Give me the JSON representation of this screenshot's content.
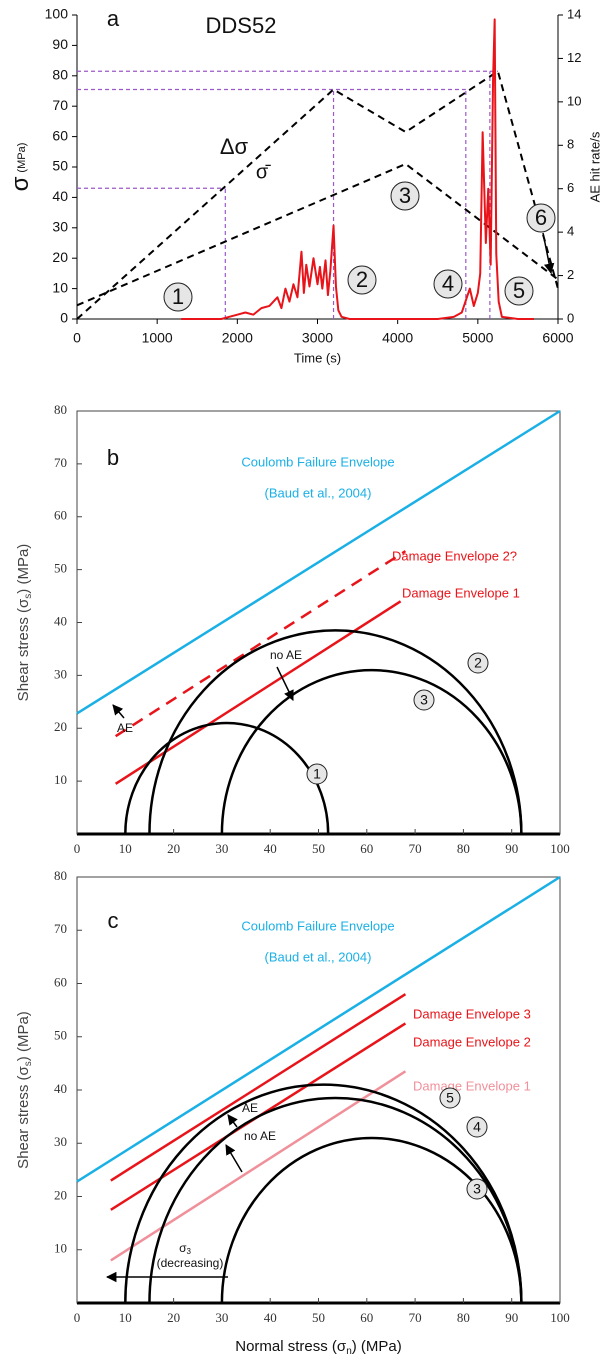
{
  "chart_data": [
    {
      "type": "line",
      "panel_label": "a",
      "title": "DDS52",
      "x_label": "Time (s)",
      "y_label": [
        "σ",
        "(MPa)"
      ],
      "y2_label": "AE hit rate/s",
      "xlim": [
        0,
        6000
      ],
      "xticks": [
        0,
        1000,
        2000,
        3000,
        4000,
        5000,
        6000
      ],
      "ylim": [
        0,
        100
      ],
      "yticks": [
        0,
        10,
        20,
        30,
        40,
        50,
        60,
        70,
        80,
        90,
        100
      ],
      "y2lim": [
        0,
        14
      ],
      "y2ticks": [
        0,
        2,
        4,
        6,
        8,
        10,
        12,
        14
      ],
      "series": [
        {
          "name": "Δσ",
          "color": "#000000",
          "dashed": true,
          "x": [
            0,
            3200,
            4100,
            5250,
            6000
          ],
          "values": [
            0,
            75.5,
            61.5,
            81.5,
            10
          ]
        },
        {
          "name": "σ̄",
          "color": "#000000",
          "dashed": true,
          "x": [
            0,
            4100,
            6000
          ],
          "values": [
            4.5,
            51,
            13
          ]
        },
        {
          "color": "#e8141a",
          "axis": "y2",
          "x": [
            1300,
            1800,
            1900,
            2000,
            2100,
            2200,
            2300,
            2400,
            2500,
            2550,
            2600,
            2650,
            2700,
            2750,
            2800,
            2830,
            2860,
            2900,
            2950,
            3000,
            3030,
            3060,
            3100,
            3130,
            3160,
            3200,
            3230,
            3260,
            3300,
            3400,
            4500,
            4700,
            4800,
            4900,
            4950,
            5000,
            5030,
            5060,
            5100,
            5130,
            5160,
            5190,
            5210,
            5230,
            5260,
            5300,
            5500,
            5700
          ],
          "values": [
            0,
            0,
            0.1,
            0.2,
            0.3,
            0.2,
            0.5,
            0.6,
            1.0,
            0.5,
            1.4,
            0.8,
            1.6,
            1.0,
            3.1,
            1.2,
            2.5,
            1.5,
            2.8,
            1.6,
            2.4,
            1.4,
            2.7,
            1.1,
            2.2,
            4.3,
            1.5,
            0.4,
            0.1,
            0,
            0,
            0.1,
            0.3,
            1.4,
            0.6,
            1.2,
            2.1,
            8.6,
            3.5,
            6.0,
            2.5,
            11,
            13.8,
            3,
            0.8,
            0.1,
            0,
            0
          ]
        }
      ],
      "reference_lines": {
        "color": "#9b59c9",
        "lines": [
          {
            "x": [
              0,
              5250
            ],
            "values": [
              81.5,
              81.5
            ]
          },
          {
            "x": [
              0,
              4850
            ],
            "values": [
              75.5,
              75.5
            ]
          },
          {
            "x": [
              0,
              1850
            ],
            "values": [
              43,
              43
            ]
          },
          {
            "x": [
              1850,
              1850
            ],
            "values": [
              0,
              43
            ]
          },
          {
            "x": [
              3200,
              3200
            ],
            "values": [
              0,
              75.5
            ]
          },
          {
            "x": [
              4850,
              4850
            ],
            "values": [
              0,
              75.5
            ]
          },
          {
            "x": [
              5150,
              5150
            ],
            "values": [
              0,
              81.5
            ]
          }
        ]
      },
      "annotations": [
        "1",
        "2",
        "3",
        "4",
        "5",
        "6"
      ]
    },
    {
      "type": "mohr",
      "panel_label": "b",
      "y_label": [
        "Shear stress (σ",
        "s",
        ") (MPa)"
      ],
      "xlim": [
        0,
        100
      ],
      "xticks": [
        0,
        10,
        20,
        30,
        40,
        50,
        60,
        70,
        80,
        90,
        100
      ],
      "ylim": [
        0,
        80
      ],
      "yticks": [
        10,
        20,
        30,
        40,
        50,
        60,
        70,
        80
      ],
      "envelopes": [
        {
          "labels": [
            "Coulomb Failure Envelope",
            "(Baud et al., 2004)"
          ],
          "color": "#1ab0e6",
          "x": [
            0,
            100
          ],
          "values": [
            22.8,
            80
          ]
        },
        {
          "labels": [
            "Damage Envelope 2?"
          ],
          "color": "#e8141a",
          "dashed": true,
          "x": [
            8,
            68
          ],
          "values": [
            18.5,
            53.5
          ]
        },
        {
          "labels": [
            "Damage Envelope 1"
          ],
          "color": "#e8141a",
          "x": [
            8,
            67
          ],
          "values": [
            9.5,
            44
          ]
        }
      ],
      "circles": [
        {
          "label": "1",
          "sigma3": 10,
          "sigma1": 52
        },
        {
          "label": "2",
          "sigma3": 15,
          "sigma1": 92
        },
        {
          "label": "3",
          "sigma3": 30,
          "sigma1": 92
        }
      ],
      "annotations": [
        "no AE",
        "AE"
      ]
    },
    {
      "type": "mohr",
      "panel_label": "c",
      "y_label": [
        "Shear stress (σ",
        "s",
        ") (MPa)"
      ],
      "x_label": [
        "Normal stress (σ",
        "n",
        ") (MPa)"
      ],
      "xlim": [
        0,
        100
      ],
      "xticks": [
        0,
        10,
        20,
        30,
        40,
        50,
        60,
        70,
        80,
        90,
        100
      ],
      "ylim": [
        0,
        80
      ],
      "yticks": [
        10,
        20,
        30,
        40,
        50,
        60,
        70,
        80
      ],
      "envelopes": [
        {
          "labels": [
            "Coulomb Failure Envelope",
            "(Baud et al., 2004)"
          ],
          "color": "#1ab0e6",
          "x": [
            0,
            100
          ],
          "values": [
            22.8,
            80
          ]
        },
        {
          "labels": [
            "Damage Envelope 3"
          ],
          "color": "#e8141a",
          "x": [
            7,
            68
          ],
          "values": [
            23,
            58
          ]
        },
        {
          "labels": [
            "Damage Envelope 2"
          ],
          "color": "#e8141a",
          "x": [
            7,
            68
          ],
          "values": [
            17.5,
            52.5
          ]
        },
        {
          "labels": [
            "Damage Envelope 1"
          ],
          "color": "#f0909a",
          "x": [
            7,
            68
          ],
          "values": [
            8,
            43.5
          ]
        }
      ],
      "circles": [
        {
          "label": "5",
          "sigma3": 10,
          "sigma1": 92
        },
        {
          "label": "4",
          "sigma3": 15,
          "sigma1": 92
        },
        {
          "label": "3",
          "sigma3": 30,
          "sigma1": 92
        }
      ],
      "annotations": [
        "AE",
        "no AE"
      ],
      "sigma3_note": [
        "σ",
        "3",
        "(decreasing)"
      ]
    }
  ]
}
